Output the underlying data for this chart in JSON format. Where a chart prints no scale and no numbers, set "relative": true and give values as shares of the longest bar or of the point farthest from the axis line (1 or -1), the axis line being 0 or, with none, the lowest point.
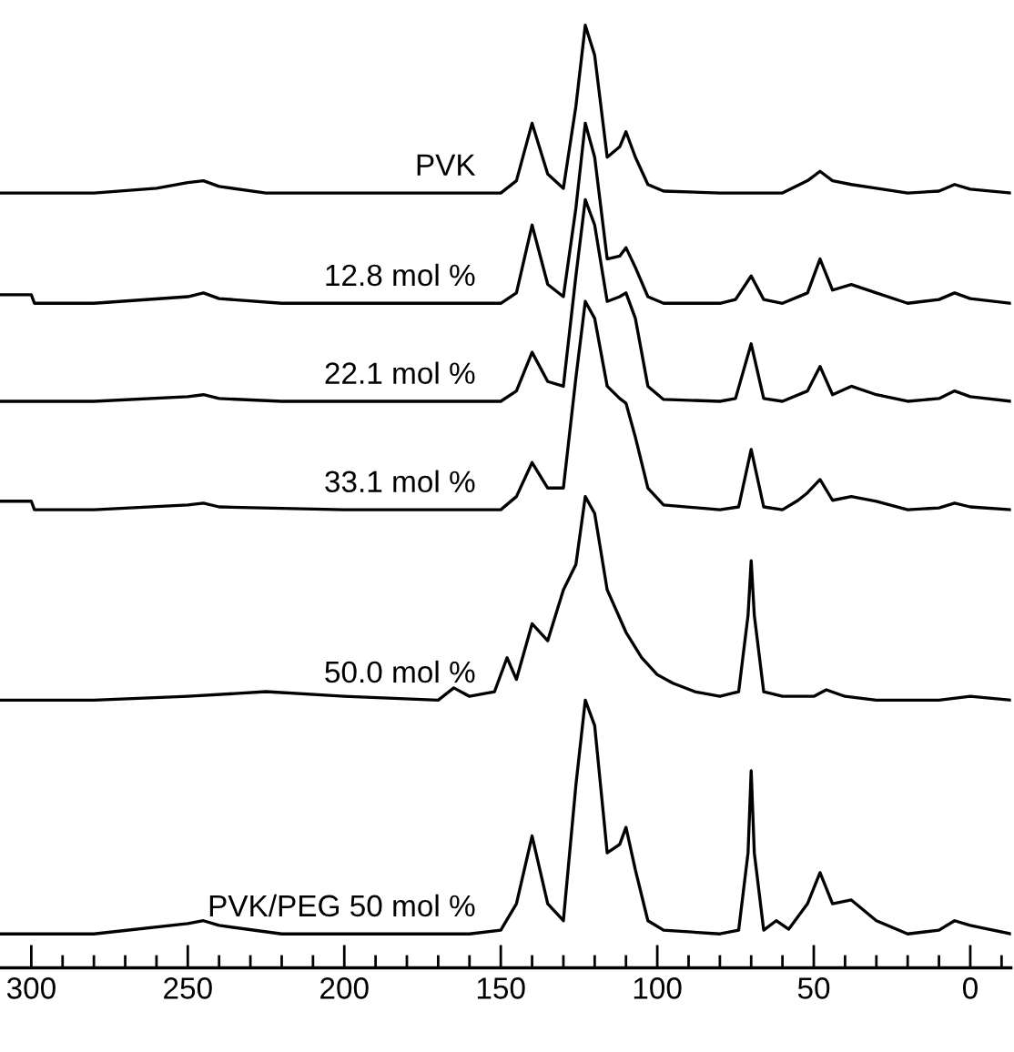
{
  "chart_data": {
    "type": "line",
    "relative": true,
    "legend": false,
    "grid": false,
    "marker": "none",
    "line_style": "solid",
    "xlim": [
      310,
      -13
    ],
    "xticks": [
      300,
      {
        "value": 290,
        "label": null
      },
      {
        "value": 280,
        "label": null
      },
      {
        "value": 270,
        "label": null
      },
      {
        "value": 260,
        "label": null
      },
      250,
      {
        "value": 240,
        "label": null
      },
      {
        "value": 230,
        "label": null
      },
      {
        "value": 220,
        "label": null
      },
      {
        "value": 210,
        "label": null
      },
      200,
      {
        "value": 190,
        "label": null
      },
      {
        "value": 180,
        "label": null
      },
      {
        "value": 170,
        "label": null
      },
      {
        "value": 160,
        "label": null
      },
      150,
      {
        "value": 140,
        "label": null
      },
      {
        "value": 130,
        "label": null
      },
      {
        "value": 120,
        "label": null
      },
      {
        "value": 110,
        "label": null
      },
      100,
      {
        "value": 90,
        "label": null
      },
      {
        "value": 80,
        "label": null
      },
      {
        "value": 70,
        "label": null
      },
      {
        "value": 60,
        "label": null
      },
      50,
      {
        "value": 40,
        "label": null
      },
      {
        "value": 30,
        "label": null
      },
      {
        "value": 20,
        "label": null
      },
      {
        "value": 10,
        "label": null
      },
      0,
      {
        "value": -10,
        "label": null
      }
    ],
    "tick_labels": "x",
    "series": [
      {
        "name": "PVK",
        "color": "#000000",
        "x": [
          310,
          280,
          260,
          250,
          245,
          240,
          225,
          200,
          170,
          150,
          145,
          140,
          135,
          130,
          126,
          123,
          120,
          116,
          112,
          110,
          107,
          103,
          98,
          80,
          60,
          52,
          48,
          44,
          38,
          30,
          20,
          10,
          5,
          0,
          -13
        ],
        "values": [
          0.822,
          0.822,
          0.827,
          0.833,
          0.835,
          0.829,
          0.822,
          0.822,
          0.822,
          0.822,
          0.835,
          0.896,
          0.842,
          0.827,
          0.914,
          1.0,
          0.968,
          0.86,
          0.871,
          0.887,
          0.86,
          0.831,
          0.824,
          0.822,
          0.822,
          0.835,
          0.845,
          0.835,
          0.831,
          0.827,
          0.822,
          0.824,
          0.831,
          0.826,
          0.822
        ]
      },
      {
        "name": "12.8 mol %",
        "color": "#000000",
        "x": [
          310,
          300,
          299,
          280,
          250,
          245,
          240,
          220,
          180,
          150,
          145,
          140,
          135,
          130,
          126,
          123,
          120,
          116,
          112,
          110,
          107,
          103,
          98,
          80,
          75,
          70,
          66,
          60,
          52,
          48,
          44,
          38,
          30,
          20,
          10,
          5,
          0,
          -13
        ],
        "values": [
          0.714,
          0.714,
          0.705,
          0.705,
          0.712,
          0.716,
          0.71,
          0.705,
          0.705,
          0.705,
          0.716,
          0.788,
          0.725,
          0.712,
          0.806,
          0.896,
          0.86,
          0.752,
          0.755,
          0.764,
          0.743,
          0.712,
          0.705,
          0.705,
          0.709,
          0.734,
          0.709,
          0.705,
          0.716,
          0.752,
          0.719,
          0.725,
          0.716,
          0.705,
          0.709,
          0.716,
          0.71,
          0.705
        ]
      },
      {
        "name": "22.1 mol %",
        "color": "#000000",
        "x": [
          310,
          280,
          250,
          245,
          240,
          220,
          180,
          150,
          145,
          140,
          135,
          130,
          126,
          123,
          120,
          116,
          112,
          110,
          107,
          103,
          98,
          80,
          75,
          70,
          66,
          60,
          52,
          48,
          44,
          38,
          30,
          20,
          10,
          5,
          0,
          -13
        ],
        "values": [
          0.601,
          0.601,
          0.606,
          0.608,
          0.604,
          0.601,
          0.601,
          0.601,
          0.612,
          0.653,
          0.622,
          0.617,
          0.734,
          0.815,
          0.788,
          0.707,
          0.712,
          0.716,
          0.689,
          0.617,
          0.603,
          0.601,
          0.604,
          0.662,
          0.604,
          0.601,
          0.612,
          0.638,
          0.608,
          0.617,
          0.608,
          0.601,
          0.604,
          0.612,
          0.606,
          0.601
        ]
      },
      {
        "name": "33.1 mol %",
        "color": "#000000",
        "x": [
          310,
          300,
          299,
          280,
          250,
          245,
          240,
          200,
          150,
          145,
          140,
          135,
          130,
          126,
          123,
          120,
          116,
          112,
          110,
          107,
          103,
          98,
          80,
          74,
          70,
          66,
          60,
          55,
          52,
          48,
          44,
          38,
          30,
          20,
          10,
          5,
          0,
          -13
        ],
        "values": [
          0.495,
          0.495,
          0.486,
          0.486,
          0.491,
          0.493,
          0.489,
          0.486,
          0.486,
          0.5,
          0.536,
          0.509,
          0.509,
          0.626,
          0.707,
          0.689,
          0.617,
          0.604,
          0.599,
          0.563,
          0.509,
          0.491,
          0.486,
          0.489,
          0.55,
          0.489,
          0.486,
          0.496,
          0.504,
          0.518,
          0.496,
          0.5,
          0.495,
          0.486,
          0.488,
          0.493,
          0.489,
          0.486
        ]
      },
      {
        "name": "50.0 mol %",
        "color": "#000000",
        "x": [
          310,
          280,
          250,
          225,
          200,
          170,
          165,
          160,
          152,
          148,
          145,
          140,
          135,
          130,
          126,
          123,
          120,
          116,
          110,
          105,
          100,
          95,
          88,
          80,
          74,
          71,
          70,
          69,
          66,
          60,
          50,
          46,
          40,
          30,
          10,
          0,
          -13
        ],
        "values": [
          0.284,
          0.284,
          0.288,
          0.293,
          0.288,
          0.284,
          0.297,
          0.288,
          0.293,
          0.329,
          0.306,
          0.365,
          0.347,
          0.401,
          0.428,
          0.5,
          0.482,
          0.401,
          0.356,
          0.329,
          0.311,
          0.302,
          0.293,
          0.288,
          0.293,
          0.374,
          0.432,
          0.374,
          0.293,
          0.288,
          0.288,
          0.295,
          0.288,
          0.284,
          0.284,
          0.288,
          0.284
        ]
      },
      {
        "name": "PVK/PEG 50 mol %",
        "color": "#000000",
        "x": [
          310,
          280,
          250,
          245,
          240,
          220,
          160,
          150,
          145,
          140,
          135,
          130,
          126,
          123,
          120,
          116,
          112,
          110,
          107,
          103,
          98,
          80,
          74,
          71,
          70,
          69,
          66,
          62,
          58,
          52,
          48,
          44,
          38,
          30,
          20,
          10,
          5,
          0,
          -13
        ],
        "values": [
          0.036,
          0.036,
          0.047,
          0.05,
          0.045,
          0.036,
          0.036,
          0.04,
          0.068,
          0.14,
          0.068,
          0.05,
          0.194,
          0.284,
          0.257,
          0.122,
          0.131,
          0.149,
          0.104,
          0.05,
          0.04,
          0.036,
          0.04,
          0.122,
          0.209,
          0.122,
          0.04,
          0.05,
          0.041,
          0.068,
          0.101,
          0.068,
          0.072,
          0.05,
          0.036,
          0.04,
          0.05,
          0.045,
          0.036
        ]
      }
    ]
  }
}
